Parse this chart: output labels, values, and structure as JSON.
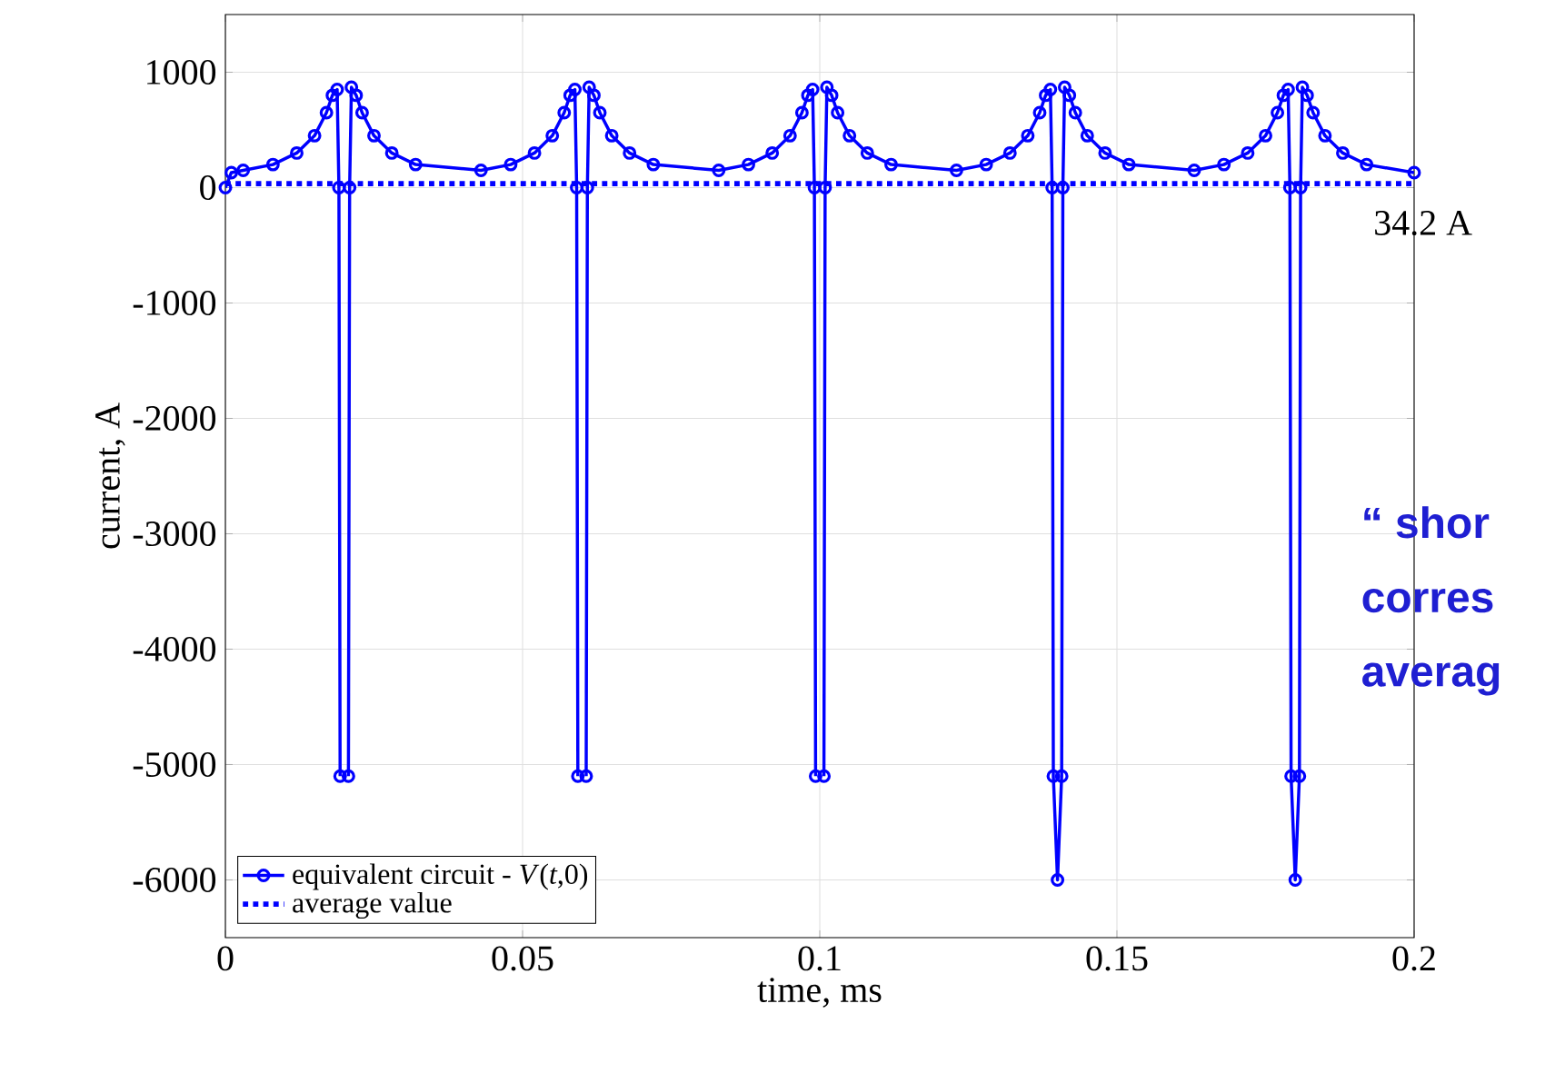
{
  "chart_data": {
    "type": "line",
    "xlabel": "time, ms",
    "ylabel": "current, A",
    "xlim": [
      0,
      0.2
    ],
    "ylim": [
      -6500,
      1500
    ],
    "xticks": [
      0,
      0.05,
      0.1,
      0.15,
      0.2
    ],
    "yticks": [
      1000,
      0,
      -1000,
      -2000,
      -3000,
      -4000,
      -5000,
      -6000
    ],
    "grid": true,
    "legend": "bottom left",
    "marker": "circle",
    "line_style": "solid",
    "series": [
      {
        "name": "equivalent circuit -  *V*(*t*,0)",
        "color": "#0000ff",
        "x": [
          0,
          0.001,
          0.003,
          0.008,
          0.012,
          0.015,
          0.017,
          0.018,
          0.0188,
          0.0191,
          0.0193,
          0.02,
          0.0207,
          0.0209,
          0.0212,
          0.022,
          0.023,
          0.025,
          0.028,
          0.032,
          0.043,
          0.048,
          0.052,
          0.055,
          0.057,
          0.058,
          0.0588,
          0.0591,
          0.0593,
          0.06,
          0.0607,
          0.0609,
          0.0612,
          0.062,
          0.063,
          0.065,
          0.068,
          0.072,
          0.083,
          0.088,
          0.092,
          0.095,
          0.097,
          0.098,
          0.0988,
          0.0991,
          0.0993,
          0.1,
          0.1007,
          0.1009,
          0.1012,
          0.102,
          0.103,
          0.105,
          0.108,
          0.112,
          0.123,
          0.128,
          0.132,
          0.135,
          0.137,
          0.138,
          0.1388,
          0.1391,
          0.1393,
          0.14,
          0.1407,
          0.1409,
          0.1412,
          0.142,
          0.143,
          0.145,
          0.148,
          0.152,
          0.163,
          0.168,
          0.172,
          0.175,
          0.177,
          0.178,
          0.1788,
          0.1791,
          0.1793,
          0.18,
          0.1807,
          0.1809,
          0.1812,
          0.182,
          0.183,
          0.185,
          0.188,
          0.192,
          0.2
        ],
        "values": [
          0,
          130,
          150,
          200,
          300,
          450,
          650,
          800,
          850,
          0,
          -5100,
          null,
          -5100,
          0,
          870,
          800,
          650,
          450,
          300,
          200,
          150,
          200,
          300,
          450,
          650,
          800,
          850,
          0,
          -5100,
          null,
          -5100,
          0,
          870,
          800,
          650,
          450,
          300,
          200,
          150,
          200,
          300,
          450,
          650,
          800,
          850,
          0,
          -5100,
          null,
          -5100,
          0,
          870,
          800,
          650,
          450,
          300,
          200,
          150,
          200,
          300,
          450,
          650,
          800,
          850,
          0,
          -5100,
          -6000,
          -5100,
          0,
          870,
          800,
          650,
          450,
          300,
          200,
          150,
          200,
          300,
          450,
          650,
          800,
          850,
          0,
          -5100,
          -6000,
          -5100,
          0,
          870,
          800,
          650,
          450,
          300,
          200,
          130
        ]
      }
    ],
    "ref_lines": [
      {
        "axis": "y",
        "value": 34.2,
        "label": "average value",
        "color": "#0000ff",
        "line_style": "dotted"
      }
    ],
    "annotations": [
      {
        "text": "34.2 A",
        "x": 0.2,
        "y": 34.2
      },
      "“ shor",
      "corres",
      "averag"
    ]
  }
}
